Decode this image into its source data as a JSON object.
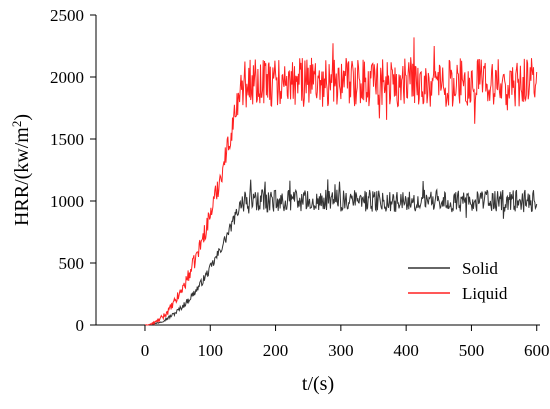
{
  "chart_data": {
    "type": "line",
    "title": "",
    "xlabel": "t/(s)",
    "ylabel_main": "HRR/(kw/m",
    "ylabel_sup": "2",
    "ylabel_close": ")",
    "xlim": [
      -75,
      605
    ],
    "ylim": [
      0,
      2500
    ],
    "x_ticks": [
      0,
      100,
      200,
      300,
      400,
      500,
      600
    ],
    "y_ticks": [
      0,
      500,
      1000,
      1500,
      2000,
      2500
    ],
    "grid": false,
    "legend_position": "bottom-right",
    "series": [
      {
        "name": "Solid",
        "color": "#333333",
        "growth_end_s": 148,
        "steady_mean": 1000,
        "noise_amplitude": 90,
        "values_sample": [
          [
            0,
            0
          ],
          [
            25,
            12
          ],
          [
            50,
            70
          ],
          [
            75,
            190
          ],
          [
            100,
            380
          ],
          [
            125,
            680
          ],
          [
            148,
            1000
          ],
          [
            200,
            1000
          ],
          [
            300,
            1000
          ],
          [
            400,
            1000
          ],
          [
            500,
            1000
          ],
          [
            600,
            960
          ]
        ]
      },
      {
        "name": "Liquid",
        "color": "#ff2020",
        "growth_end_s": 148,
        "steady_mean": 1960,
        "noise_amplitude": 200,
        "values_sample": [
          [
            0,
            0
          ],
          [
            25,
            25
          ],
          [
            50,
            140
          ],
          [
            75,
            420
          ],
          [
            100,
            860
          ],
          [
            125,
            1470
          ],
          [
            148,
            1960
          ],
          [
            200,
            1960
          ],
          [
            300,
            1960
          ],
          [
            400,
            1960
          ],
          [
            500,
            1960
          ],
          [
            600,
            1900
          ]
        ]
      }
    ]
  }
}
